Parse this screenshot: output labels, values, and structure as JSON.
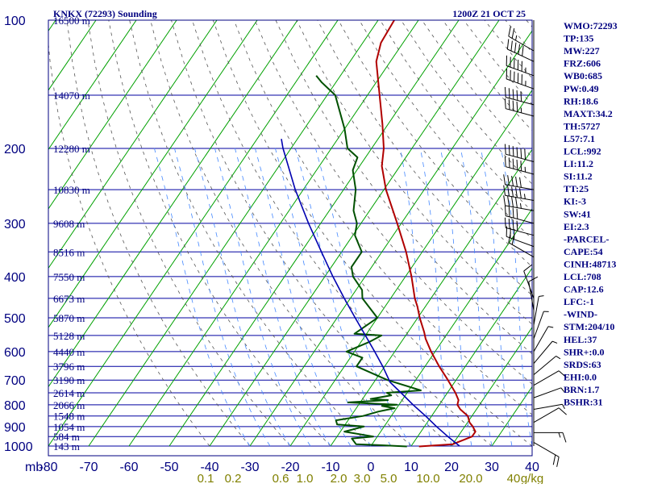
{
  "header": {
    "station": "KNKX (72293) Sounding",
    "time": "1200Z 21 OCT 25"
  },
  "indices": [
    "WMO:72293",
    "TP:135",
    "MW:227",
    "FRZ:606",
    "WB0:685",
    "PW:0.49",
    "RH:18.6",
    "MAXT:34.2",
    "TH:5727",
    "L57:7.1",
    "LCL:992",
    "LI:11.2",
    "SI:11.2",
    "TT:25",
    "KI:-3",
    "SW:41",
    "EI:2.3",
    "-PARCEL-",
    "CAPE:54",
    "CINH:48713",
    "LCL:708",
    "CAP:12.6",
    "LFC:-1",
    "-WIND-",
    "STM:204/10",
    "HEL:37",
    "SHR+:0.0",
    "SRDS:63",
    "EHI:0.0",
    "BRN:1.7",
    "BSHR:31"
  ],
  "colors": {
    "frame": "#000080",
    "isobar": "#0000a0",
    "isotherm": "#00a000",
    "dry_adiabat": "#555555",
    "moist_adiabat": "#4488ff",
    "mixing_ratio": "#808000",
    "temperature": "#b00000",
    "dewpoint": "#005000",
    "parcel": "#0000b0"
  },
  "chart_data": {
    "type": "skew-t log-p sounding",
    "y_axis": {
      "unit": "mb",
      "log_scale": true,
      "range": [
        100,
        1000
      ],
      "tick_labels": [
        "100",
        "200",
        "300",
        "400",
        "500",
        "600",
        "700",
        "800",
        "900",
        "1000"
      ]
    },
    "x_axis": {
      "unit": "°C",
      "range": [
        -80,
        40
      ],
      "tick_labels": [
        "mb",
        "-80",
        "-70",
        "-60",
        "-50",
        "-40",
        "-30",
        "-20",
        "-10",
        "0",
        "10",
        "20",
        "30",
        "40"
      ]
    },
    "mixing_ratio_labels": [
      "0.1",
      "0.2",
      "0.6",
      "1.0",
      "2.0",
      "3.0",
      "5.0",
      "10.0",
      "20.0",
      "40",
      "g/kg"
    ],
    "height_labels": [
      {
        "p": 100,
        "label": "16500 m"
      },
      {
        "p": 150,
        "label": "14070 m"
      },
      {
        "p": 200,
        "label": "12280 m"
      },
      {
        "p": 250,
        "label": "10830 m"
      },
      {
        "p": 300,
        "label": "9608 m"
      },
      {
        "p": 350,
        "label": "8516 m"
      },
      {
        "p": 400,
        "label": "7550 m"
      },
      {
        "p": 450,
        "label": "6673 m"
      },
      {
        "p": 500,
        "label": "5870 m"
      },
      {
        "p": 550,
        "label": "5128 m"
      },
      {
        "p": 600,
        "label": "4440 m"
      },
      {
        "p": 650,
        "label": "3796 m"
      },
      {
        "p": 700,
        "label": "3190 m"
      },
      {
        "p": 750,
        "label": "2614 m"
      },
      {
        "p": 800,
        "label": "2066 m"
      },
      {
        "p": 850,
        "label": "1548 m"
      },
      {
        "p": 900,
        "label": "1054 m"
      },
      {
        "p": 950,
        "label": "584 m"
      },
      {
        "p": 1000,
        "label": "143 m"
      }
    ],
    "series": [
      {
        "key": "temperature",
        "points": [
          [
            1002,
            12.0
          ],
          [
            990,
            20.0
          ],
          [
            950,
            23.5
          ],
          [
            925,
            23.5
          ],
          [
            900,
            22.0
          ],
          [
            880,
            20.5
          ],
          [
            850,
            19.0
          ],
          [
            820,
            16.0
          ],
          [
            800,
            14.5
          ],
          [
            780,
            14.0
          ],
          [
            750,
            12.0
          ],
          [
            700,
            8.0
          ],
          [
            650,
            3.5
          ],
          [
            600,
            -1.0
          ],
          [
            560,
            -4.5
          ],
          [
            540,
            -6.0
          ],
          [
            500,
            -9.5
          ],
          [
            470,
            -12.0
          ],
          [
            450,
            -14.0
          ],
          [
            400,
            -18.5
          ],
          [
            350,
            -24.0
          ],
          [
            300,
            -31.0
          ],
          [
            250,
            -39.5
          ],
          [
            220,
            -44.5
          ],
          [
            200,
            -47.0
          ],
          [
            175,
            -51.5
          ],
          [
            150,
            -57.0
          ],
          [
            125,
            -63.5
          ],
          [
            113,
            -65.5
          ],
          [
            100,
            -66.0
          ]
        ]
      },
      {
        "key": "dewpoint",
        "points": [
          [
            1002,
            9.0
          ],
          [
            995,
            2.0
          ],
          [
            990,
            -4.0
          ],
          [
            960,
            -6.0
          ],
          [
            950,
            -1.0
          ],
          [
            925,
            -9.0
          ],
          [
            900,
            -5.0
          ],
          [
            890,
            -12.0
          ],
          [
            870,
            -13.0
          ],
          [
            850,
            -7.0
          ],
          [
            830,
            -4.0
          ],
          [
            815,
            -0.5
          ],
          [
            805,
            -4.0
          ],
          [
            800,
            -0.5
          ],
          [
            790,
            -13.0
          ],
          [
            780,
            -3.5
          ],
          [
            775,
            -8.0
          ],
          [
            760,
            -3.5
          ],
          [
            750,
            -5.0
          ],
          [
            740,
            3.0
          ],
          [
            700,
            -7.0
          ],
          [
            650,
            -17.0
          ],
          [
            620,
            -17.0
          ],
          [
            600,
            -22.0
          ],
          [
            570,
            -18.0
          ],
          [
            550,
            -16.0
          ],
          [
            545,
            -23.0
          ],
          [
            500,
            -20.0
          ],
          [
            450,
            -27.0
          ],
          [
            430,
            -28.5
          ],
          [
            400,
            -33.0
          ],
          [
            380,
            -35.0
          ],
          [
            350,
            -35.0
          ],
          [
            320,
            -39.5
          ],
          [
            300,
            -41.0
          ],
          [
            280,
            -44.0
          ],
          [
            250,
            -47.0
          ],
          [
            225,
            -51.0
          ],
          [
            210,
            -52.0
          ],
          [
            200,
            -56.0
          ],
          [
            180,
            -60.0
          ],
          [
            150,
            -68.0
          ],
          [
            140,
            -73.5
          ],
          [
            135,
            -76.0
          ]
        ]
      },
      {
        "key": "parcel",
        "points": [
          [
            1000,
            22.0
          ],
          [
            950,
            17.5
          ],
          [
            900,
            13.0
          ],
          [
            850,
            8.5
          ],
          [
            800,
            3.5
          ],
          [
            750,
            -1.5
          ],
          [
            708,
            -6.0
          ],
          [
            650,
            -10.5
          ],
          [
            600,
            -15.0
          ],
          [
            550,
            -20.0
          ],
          [
            500,
            -25.5
          ],
          [
            450,
            -31.5
          ],
          [
            400,
            -38.0
          ],
          [
            350,
            -45.0
          ],
          [
            300,
            -53.0
          ],
          [
            250,
            -62.0
          ],
          [
            200,
            -72.0
          ],
          [
            190,
            -74.0
          ]
        ]
      }
    ],
    "wind_barbs": [
      {
        "p": 118,
        "dir": 300,
        "kt": 25
      },
      {
        "p": 125,
        "dir": 295,
        "kt": 50
      },
      {
        "p": 135,
        "dir": 290,
        "kt": 55
      },
      {
        "p": 145,
        "dir": 290,
        "kt": 55
      },
      {
        "p": 158,
        "dir": 285,
        "kt": 50
      },
      {
        "p": 168,
        "dir": 285,
        "kt": 45
      },
      {
        "p": 215,
        "dir": 285,
        "kt": 60
      },
      {
        "p": 230,
        "dir": 285,
        "kt": 55
      },
      {
        "p": 250,
        "dir": 280,
        "kt": 50
      },
      {
        "p": 265,
        "dir": 280,
        "kt": 55
      },
      {
        "p": 280,
        "dir": 280,
        "kt": 45
      },
      {
        "p": 300,
        "dir": 285,
        "kt": 40
      },
      {
        "p": 320,
        "dir": 285,
        "kt": 40
      },
      {
        "p": 340,
        "dir": 290,
        "kt": 30
      },
      {
        "p": 360,
        "dir": 300,
        "kt": 20
      },
      {
        "p": 450,
        "dir": 340,
        "kt": 10
      },
      {
        "p": 480,
        "dir": 350,
        "kt": 10
      },
      {
        "p": 520,
        "dir": 10,
        "kt": 5
      },
      {
        "p": 560,
        "dir": 20,
        "kt": 5
      },
      {
        "p": 600,
        "dir": 30,
        "kt": 5
      },
      {
        "p": 640,
        "dir": 40,
        "kt": 5
      },
      {
        "p": 680,
        "dir": 50,
        "kt": 5
      },
      {
        "p": 720,
        "dir": 60,
        "kt": 10
      },
      {
        "p": 770,
        "dir": 70,
        "kt": 5
      },
      {
        "p": 820,
        "dir": 80,
        "kt": 5
      },
      {
        "p": 880,
        "dir": 60,
        "kt": 10
      },
      {
        "p": 930,
        "dir": 90,
        "kt": 15
      },
      {
        "p": 980,
        "dir": 120,
        "kt": 20
      }
    ]
  }
}
